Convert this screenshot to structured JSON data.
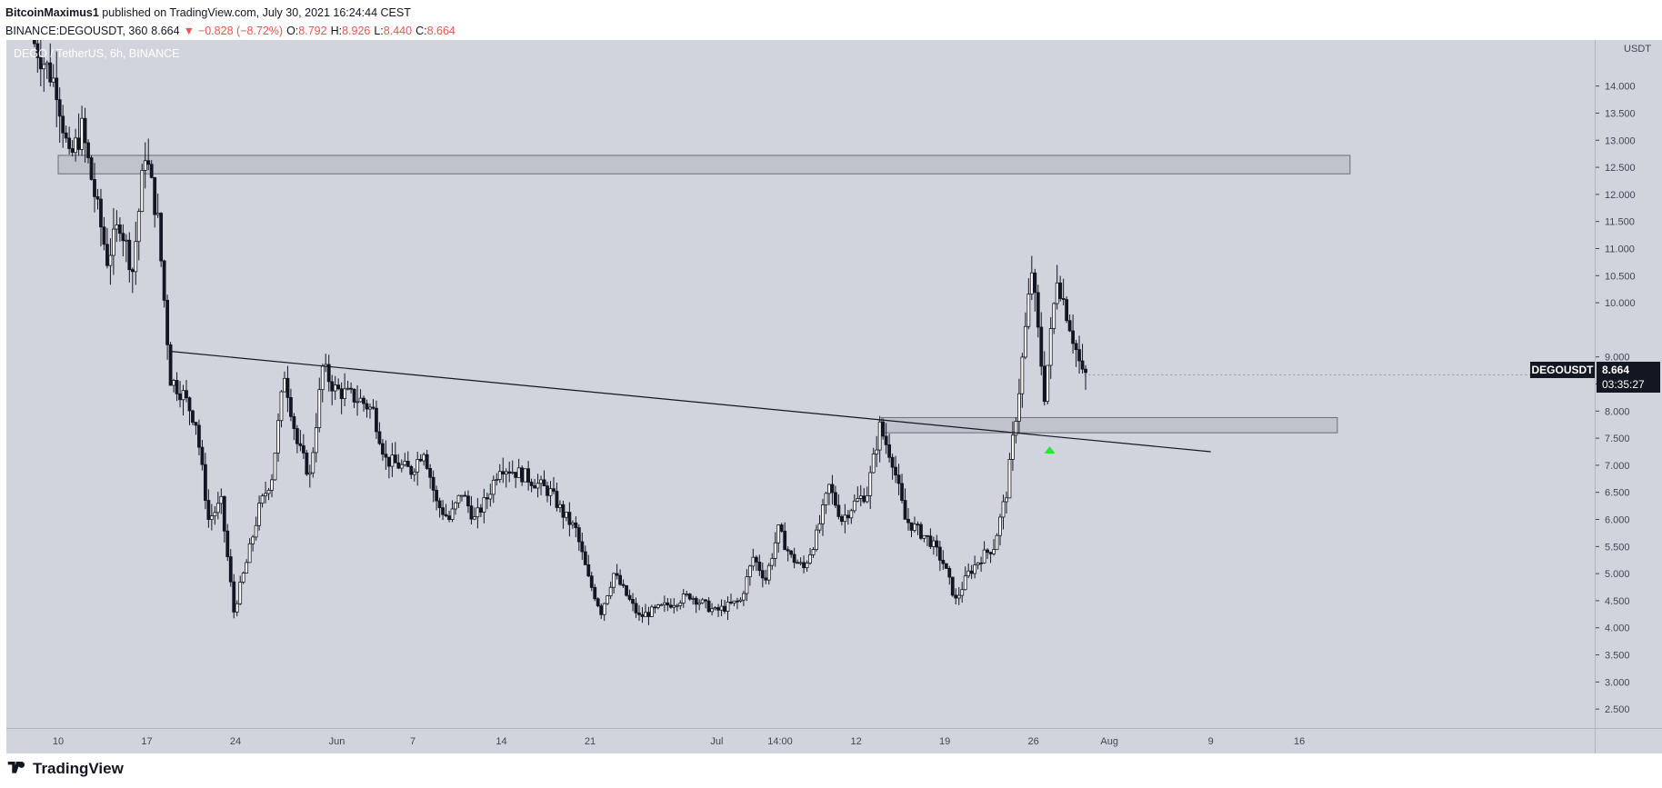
{
  "header": {
    "author": "BitcoinMaximus1",
    "published": "published on TradingView.com, July 30, 2021 16:24:44 CEST",
    "symbol_line": "BINANCE:DEGOUSDT, 360",
    "last": "8.664",
    "arrow": "▼",
    "change": "−0.828 (−8.72%)",
    "o_label": "O:",
    "o_value": "8.792",
    "h_label": "H:",
    "h_value": "8.926",
    "l_label": "L:",
    "l_value": "8.440",
    "c_label": "C:",
    "c_value": "8.664"
  },
  "watermark": "DEGO / TetherUS, 6h, BINANCE",
  "axis_unit": "USDT",
  "price_tag": {
    "symbol": "DEGOUSDT",
    "price": "8.664",
    "countdown": "03:35:27"
  },
  "footer": {
    "brand": "TradingView"
  },
  "colors": {
    "background": "#d1d4dc",
    "candle": "#131722",
    "zone": "#b2b5be",
    "marker": "#26e63a",
    "down": "#ef5350"
  },
  "chart_data": {
    "type": "candlestick",
    "title": "DEGO / TetherUS, 6h, BINANCE",
    "ylabel": "USDT",
    "ylim": [
      2.15,
      14.85
    ],
    "yticks": [
      "14.000",
      "13.500",
      "13.000",
      "12.500",
      "12.000",
      "11.500",
      "11.000",
      "10.500",
      "10.000",
      "9.000",
      "8.500",
      "8.000",
      "7.500",
      "7.000",
      "6.500",
      "6.000",
      "5.500",
      "5.000",
      "4.500",
      "4.000",
      "3.500",
      "3.000",
      "2.500"
    ],
    "xticks": [
      {
        "label": "10",
        "date": "2021-05-10"
      },
      {
        "label": "17",
        "date": "2021-05-17"
      },
      {
        "label": "24",
        "date": "2021-05-24"
      },
      {
        "label": "Jun",
        "date": "2021-06-01"
      },
      {
        "label": "7",
        "date": "2021-06-07"
      },
      {
        "label": "14",
        "date": "2021-06-14"
      },
      {
        "label": "21",
        "date": "2021-06-21"
      },
      {
        "label": "Jul",
        "date": "2021-07-01"
      },
      {
        "label": "14:00",
        "date": "2021-07-06"
      },
      {
        "label": "12",
        "date": "2021-07-12"
      },
      {
        "label": "19",
        "date": "2021-07-19"
      },
      {
        "label": "26",
        "date": "2021-07-26"
      },
      {
        "label": "Aug",
        "date": "2021-08-01"
      },
      {
        "label": "9",
        "date": "2021-08-09"
      },
      {
        "label": "16",
        "date": "2021-08-16"
      }
    ],
    "price_path": [
      [
        "2021-05-08",
        14.9
      ],
      [
        "2021-05-10",
        14.0
      ],
      [
        "2021-05-11",
        12.6
      ],
      [
        "2021-05-12",
        13.2
      ],
      [
        "2021-05-13",
        12.0
      ],
      [
        "2021-05-14",
        10.8
      ],
      [
        "2021-05-15",
        11.5
      ],
      [
        "2021-05-16",
        10.6
      ],
      [
        "2021-05-17",
        12.8
      ],
      [
        "2021-05-18",
        11.5
      ],
      [
        "2021-05-19",
        8.6
      ],
      [
        "2021-05-20",
        8.3
      ],
      [
        "2021-05-21",
        7.8
      ],
      [
        "2021-05-22",
        6.0
      ],
      [
        "2021-05-23",
        6.3
      ],
      [
        "2021-05-24",
        4.3
      ],
      [
        "2021-05-25",
        5.2
      ],
      [
        "2021-05-26",
        6.2
      ],
      [
        "2021-05-27",
        6.8
      ],
      [
        "2021-05-28",
        8.7
      ],
      [
        "2021-05-29",
        7.4
      ],
      [
        "2021-05-30",
        6.8
      ],
      [
        "2021-05-31",
        8.8
      ],
      [
        "2021-06-01",
        8.4
      ],
      [
        "2021-06-03",
        8.2
      ],
      [
        "2021-06-04",
        8.0
      ],
      [
        "2021-06-05",
        7.1
      ],
      [
        "2021-06-07",
        6.9
      ],
      [
        "2021-06-08",
        7.3
      ],
      [
        "2021-06-09",
        6.3
      ],
      [
        "2021-06-10",
        6.0
      ],
      [
        "2021-06-11",
        6.5
      ],
      [
        "2021-06-12",
        6.0
      ],
      [
        "2021-06-13",
        6.4
      ],
      [
        "2021-06-14",
        7.0
      ],
      [
        "2021-06-16",
        6.8
      ],
      [
        "2021-06-18",
        6.5
      ],
      [
        "2021-06-19",
        6.1
      ],
      [
        "2021-06-20",
        5.8
      ],
      [
        "2021-06-21",
        4.9
      ],
      [
        "2021-06-22",
        4.3
      ],
      [
        "2021-06-23",
        5.0
      ],
      [
        "2021-06-24",
        4.6
      ],
      [
        "2021-06-25",
        4.2
      ],
      [
        "2021-06-27",
        4.4
      ],
      [
        "2021-06-29",
        4.6
      ],
      [
        "2021-07-01",
        4.3
      ],
      [
        "2021-07-03",
        4.5
      ],
      [
        "2021-07-04",
        5.3
      ],
      [
        "2021-07-05",
        4.9
      ],
      [
        "2021-07-06",
        5.8
      ],
      [
        "2021-07-07",
        5.3
      ],
      [
        "2021-07-08",
        5.1
      ],
      [
        "2021-07-09",
        5.7
      ],
      [
        "2021-07-10",
        6.6
      ],
      [
        "2021-07-11",
        6.0
      ],
      [
        "2021-07-12",
        6.3
      ],
      [
        "2021-07-13",
        6.5
      ],
      [
        "2021-07-14",
        7.7
      ],
      [
        "2021-07-15",
        7.1
      ],
      [
        "2021-07-16",
        6.0
      ],
      [
        "2021-07-17",
        5.8
      ],
      [
        "2021-07-18",
        5.6
      ],
      [
        "2021-07-19",
        5.2
      ],
      [
        "2021-07-20",
        4.5
      ],
      [
        "2021-07-21",
        5.0
      ],
      [
        "2021-07-22",
        5.3
      ],
      [
        "2021-07-23",
        5.5
      ],
      [
        "2021-07-24",
        6.5
      ],
      [
        "2021-07-25",
        8.4
      ],
      [
        "2021-07-26",
        10.6
      ],
      [
        "2021-07-27",
        8.3
      ],
      [
        "2021-07-28",
        10.5
      ],
      [
        "2021-07-29",
        9.6
      ],
      [
        "2021-07-30",
        8.66
      ]
    ],
    "annotations": {
      "resistance_zone": {
        "low": 12.38,
        "high": 12.72,
        "start": "2021-05-10",
        "end": "2021-08-20"
      },
      "support_zone": {
        "low": 7.6,
        "high": 7.88,
        "start": "2021-07-14",
        "end": "2021-08-19"
      },
      "trendline": {
        "start": [
          "2021-05-19",
          9.1
        ],
        "end": [
          "2021-08-09",
          7.25
        ]
      },
      "marker": {
        "date": "2021-07-27",
        "price": 7.3
      }
    }
  }
}
